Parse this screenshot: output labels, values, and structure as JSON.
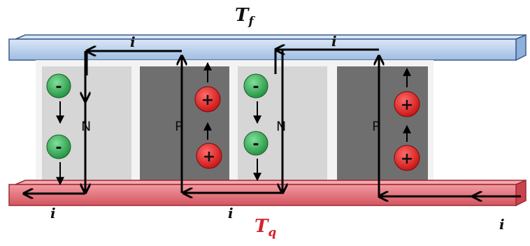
{
  "labels": {
    "top_temperature": "T",
    "top_temperature_sub": "f",
    "bottom_temperature": "T",
    "bottom_temperature_sub": "q",
    "current_symbol": "i",
    "n_leg": "N",
    "p_leg": "P"
  },
  "charges": {
    "electron": "-",
    "hole": "+"
  },
  "colors": {
    "cold_plate": "#b7cdea",
    "hot_plate": "#e26b76",
    "n_leg": "#d4d4d4",
    "p_leg": "#6e6e6e",
    "electron": "#2fa84f",
    "hole": "#e32020",
    "bottom_label": "#d4232e"
  }
}
